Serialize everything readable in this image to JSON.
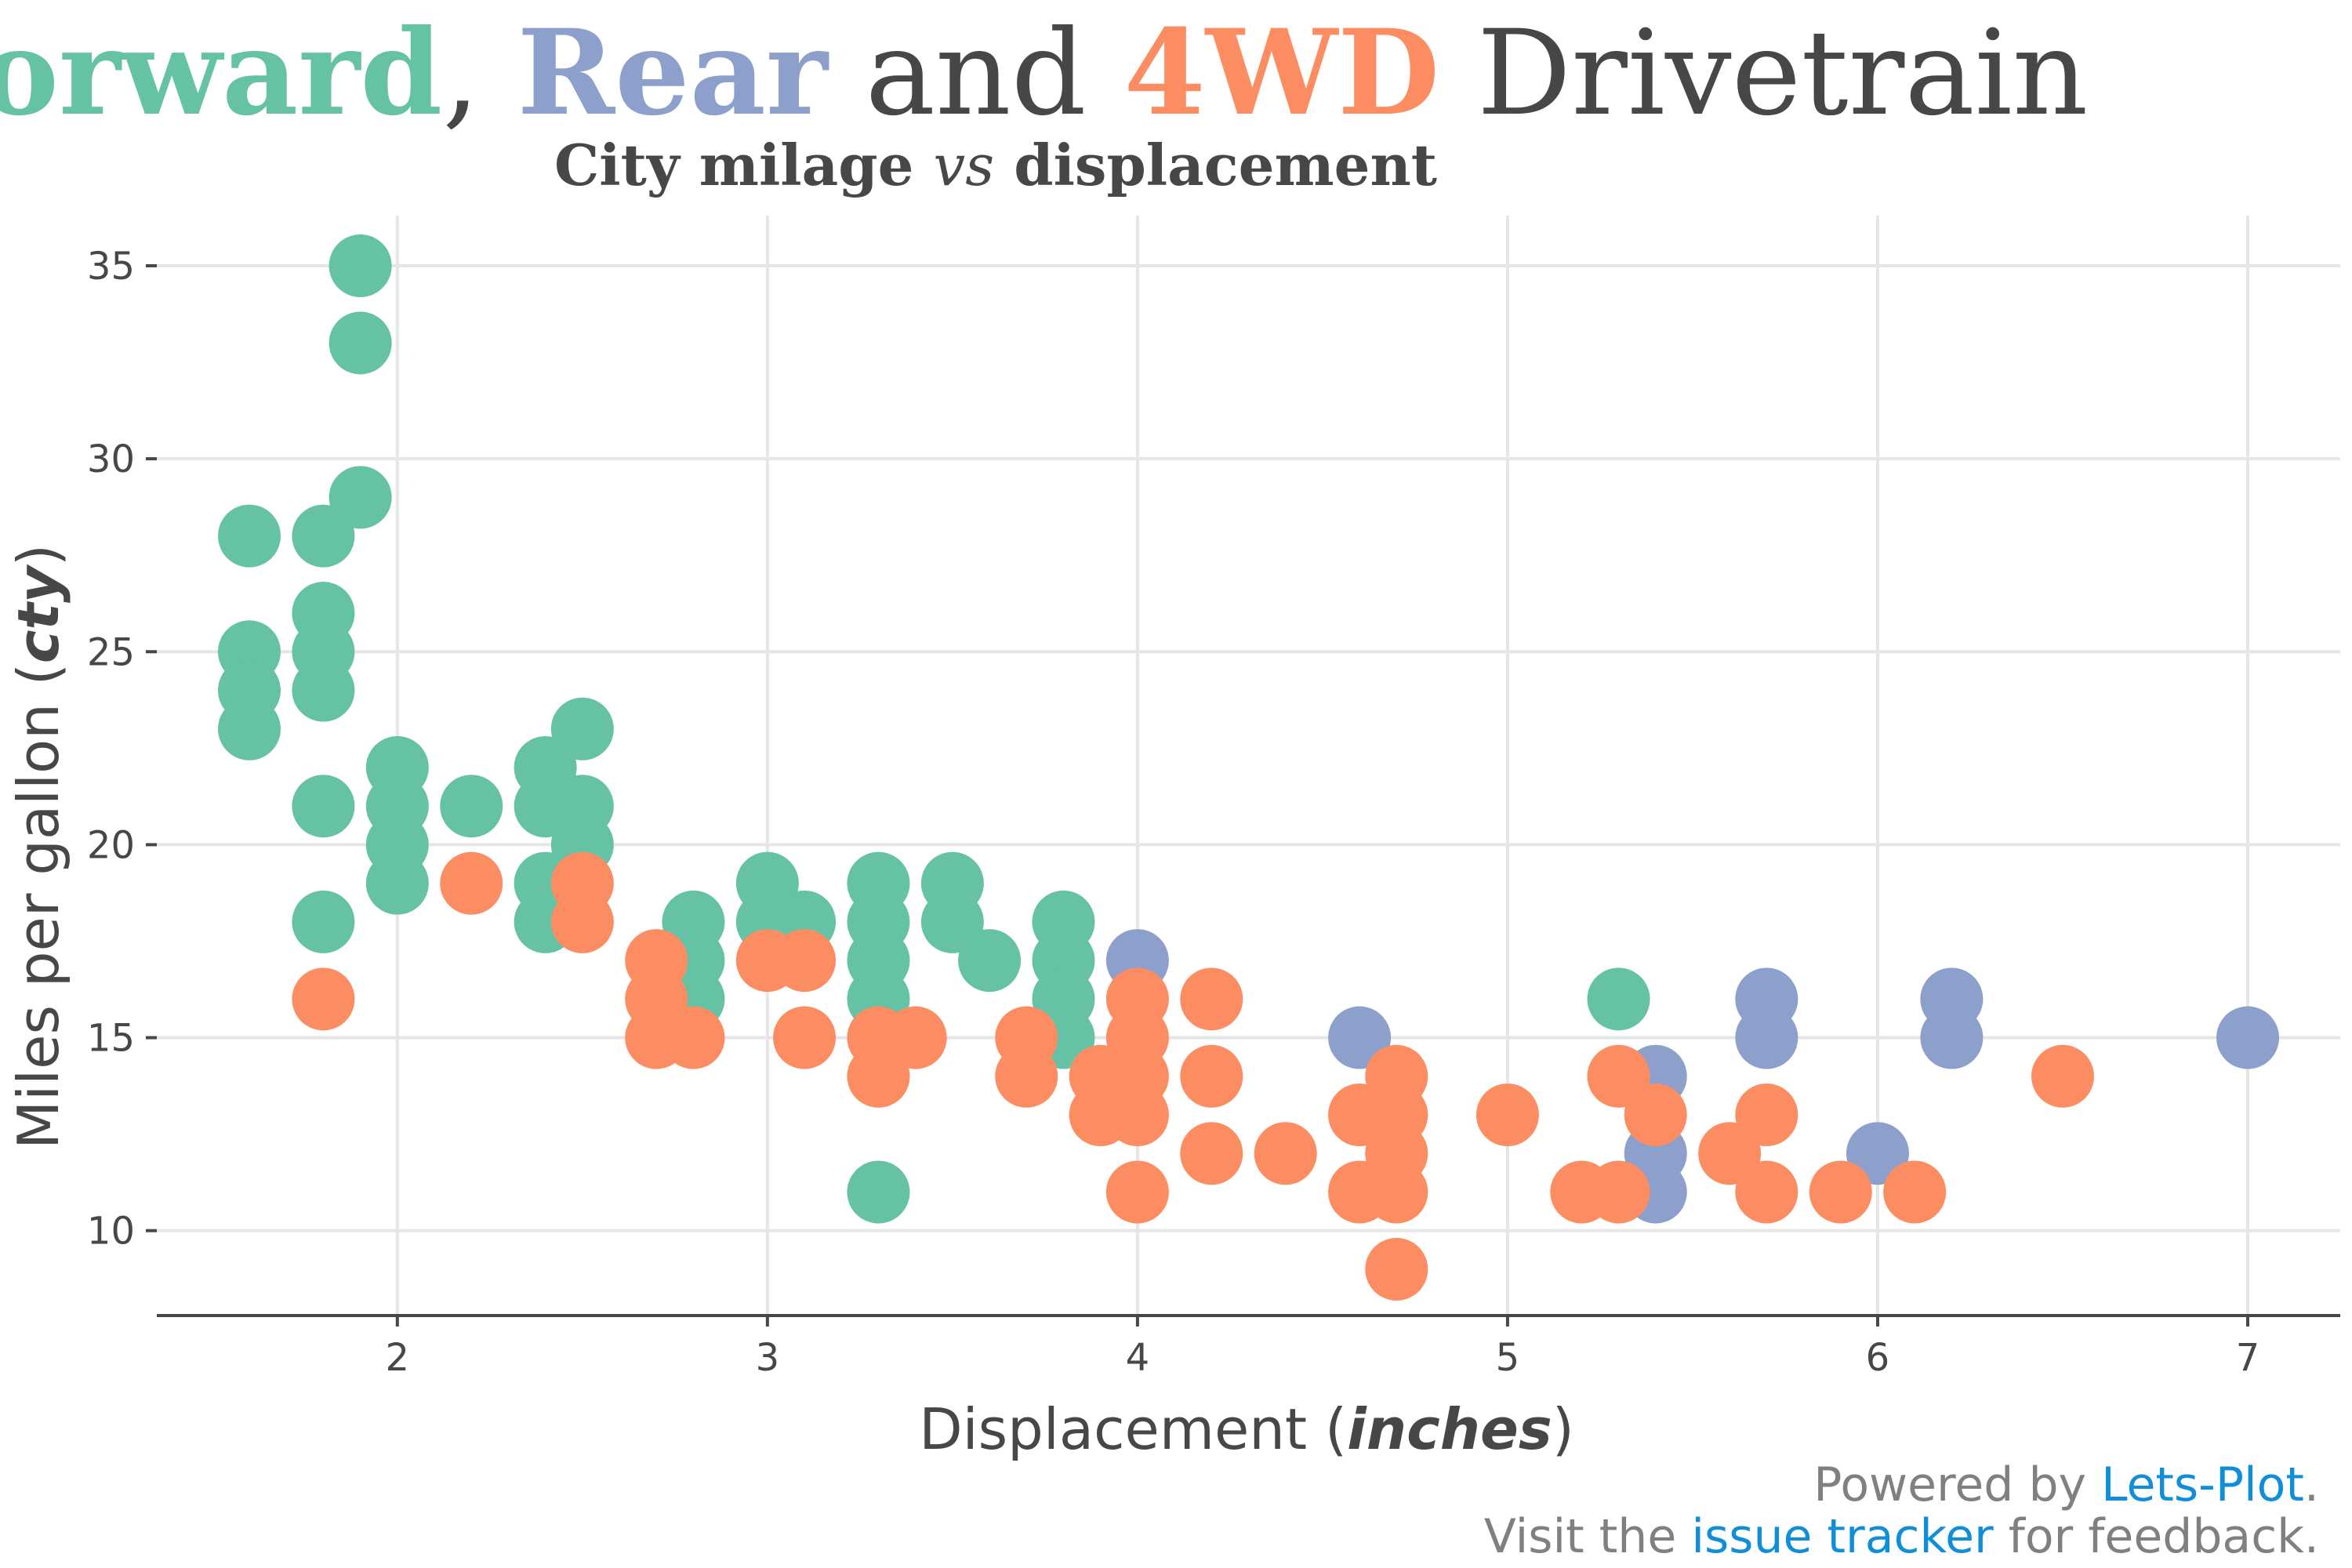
{
  "title": {
    "forward": "Forward",
    "comma": ", ",
    "rear": "Rear",
    "and": " and ",
    "fourwd": "4WD",
    "rest": " Drivetrain"
  },
  "subtitle": {
    "part1": "City milage ",
    "vs": "vs",
    "part2": " displacement"
  },
  "axes": {
    "x_title_prefix": "Displacement (",
    "x_title_em": "inches",
    "x_title_suffix": ")",
    "y_title_prefix": "Miles per gallon (",
    "y_title_em": "cty",
    "y_title_suffix": ")"
  },
  "footer": {
    "line1_prefix": "Powered by ",
    "line1_link": "Lets-Plot",
    "line1_suffix": ".",
    "line2_prefix": "Visit the ",
    "line2_link": "issue tracker",
    "line2_suffix": " for feedback."
  },
  "colors": {
    "f": "#66c2a5",
    "r": "#8da0cb",
    "4": "#fc8d62",
    "text": "#474747",
    "grid": "#e6e6e6",
    "link": "#118ed8"
  },
  "chart_data": {
    "type": "scatter",
    "xlim": [
      1.35,
      7.25
    ],
    "ylim": [
      7.8,
      36.3
    ],
    "x_ticks": [
      2,
      3,
      4,
      5,
      6,
      7
    ],
    "y_ticks": [
      10,
      15,
      20,
      25,
      30,
      35
    ],
    "grid": true,
    "series": [
      {
        "key": "f",
        "points": [
          [
            1.6,
            28
          ],
          [
            1.6,
            25
          ],
          [
            1.6,
            24
          ],
          [
            1.6,
            23
          ],
          [
            1.8,
            28
          ],
          [
            1.8,
            26
          ],
          [
            1.8,
            25
          ],
          [
            1.8,
            24
          ],
          [
            1.8,
            21
          ],
          [
            1.8,
            18
          ],
          [
            1.9,
            35
          ],
          [
            1.9,
            33
          ],
          [
            1.9,
            29
          ],
          [
            2.0,
            22
          ],
          [
            2.0,
            21
          ],
          [
            2.0,
            20
          ],
          [
            2.0,
            19
          ],
          [
            2.2,
            21
          ],
          [
            2.4,
            22
          ],
          [
            2.4,
            21
          ],
          [
            2.4,
            19
          ],
          [
            2.4,
            18
          ],
          [
            2.5,
            23
          ],
          [
            2.5,
            21
          ],
          [
            2.5,
            20
          ],
          [
            2.8,
            18
          ],
          [
            2.8,
            17
          ],
          [
            2.8,
            16
          ],
          [
            3.0,
            19
          ],
          [
            3.0,
            18
          ],
          [
            3.1,
            18
          ],
          [
            3.3,
            19
          ],
          [
            3.3,
            18
          ],
          [
            3.3,
            17
          ],
          [
            3.3,
            16
          ],
          [
            3.3,
            11
          ],
          [
            3.5,
            19
          ],
          [
            3.5,
            18
          ],
          [
            3.6,
            17
          ],
          [
            3.8,
            18
          ],
          [
            3.8,
            17
          ],
          [
            3.8,
            16
          ],
          [
            3.8,
            15
          ],
          [
            5.3,
            16
          ]
        ]
      },
      {
        "key": "r",
        "points": [
          [
            4.0,
            17
          ],
          [
            4.6,
            15
          ],
          [
            5.4,
            14
          ],
          [
            5.4,
            12
          ],
          [
            5.4,
            11
          ],
          [
            5.7,
            16
          ],
          [
            5.7,
            15
          ],
          [
            6.0,
            12
          ],
          [
            6.2,
            16
          ],
          [
            6.2,
            15
          ],
          [
            7.0,
            15
          ]
        ]
      },
      {
        "key": "4",
        "points": [
          [
            1.8,
            16
          ],
          [
            2.2,
            19
          ],
          [
            2.5,
            19
          ],
          [
            2.5,
            18
          ],
          [
            2.7,
            17
          ],
          [
            2.7,
            16
          ],
          [
            2.7,
            15
          ],
          [
            2.8,
            15
          ],
          [
            3.0,
            17
          ],
          [
            3.1,
            17
          ],
          [
            3.1,
            15
          ],
          [
            3.3,
            15
          ],
          [
            3.3,
            14
          ],
          [
            3.4,
            15
          ],
          [
            3.7,
            15
          ],
          [
            3.7,
            14
          ],
          [
            3.9,
            14
          ],
          [
            3.9,
            13
          ],
          [
            4.0,
            16
          ],
          [
            4.0,
            15
          ],
          [
            4.0,
            14
          ],
          [
            4.0,
            13
          ],
          [
            4.0,
            11
          ],
          [
            4.2,
            16
          ],
          [
            4.2,
            14
          ],
          [
            4.2,
            12
          ],
          [
            4.4,
            12
          ],
          [
            4.6,
            13
          ],
          [
            4.6,
            11
          ],
          [
            4.7,
            14
          ],
          [
            4.7,
            13
          ],
          [
            4.7,
            12
          ],
          [
            4.7,
            11
          ],
          [
            4.7,
            9
          ],
          [
            5.0,
            13
          ],
          [
            5.2,
            11
          ],
          [
            5.3,
            14
          ],
          [
            5.3,
            11
          ],
          [
            5.4,
            13
          ],
          [
            5.6,
            12
          ],
          [
            5.7,
            13
          ],
          [
            5.7,
            11
          ],
          [
            5.9,
            11
          ],
          [
            6.1,
            11
          ],
          [
            6.5,
            14
          ]
        ]
      }
    ]
  }
}
